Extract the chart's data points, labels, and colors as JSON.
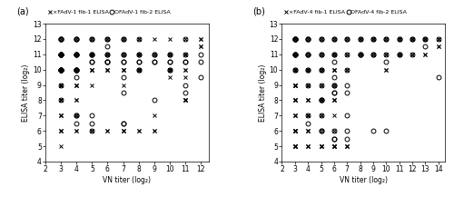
{
  "panel_a": {
    "title": "(a)",
    "legend_label_x": "×FAdV-1 fib-1 ELISA",
    "legend_label_o": "OFAdV-1 fib-2 ELISA",
    "xlabel": "VN titer (log₂)",
    "ylabel": "ELISA titer (log₂)",
    "xlim": [
      2,
      12.5
    ],
    "ylim": [
      4,
      13
    ],
    "xticks": [
      2,
      3,
      4,
      5,
      6,
      7,
      8,
      9,
      10,
      11,
      12
    ],
    "yticks": [
      4,
      5,
      6,
      7,
      8,
      9,
      10,
      11,
      12,
      13
    ],
    "cross_data": {
      "3": [
        5,
        6,
        6,
        6,
        7,
        7,
        7,
        8,
        8,
        8,
        8,
        9,
        9,
        9,
        9,
        9,
        9,
        9,
        10,
        10,
        10,
        10,
        10,
        10,
        10,
        10,
        11,
        11,
        11,
        11,
        11,
        11,
        11,
        12,
        12
      ],
      "4": [
        6,
        6,
        7,
        7,
        8,
        8,
        9,
        9,
        9,
        10,
        10,
        10,
        10,
        11,
        11,
        11,
        11,
        12,
        12
      ],
      "5": [
        6,
        6,
        9,
        10,
        10,
        10,
        11,
        11,
        11,
        11,
        11,
        12,
        12
      ],
      "6": [
        6,
        6,
        10,
        10,
        10,
        11,
        11,
        11,
        12,
        12
      ],
      "7": [
        6,
        6,
        6,
        9,
        10,
        10,
        10,
        11,
        11,
        12,
        12
      ],
      "8": [
        6,
        6,
        10,
        10,
        10,
        10,
        11,
        11,
        11,
        11,
        12,
        12
      ],
      "9": [
        6,
        6,
        7,
        11,
        11,
        12
      ],
      "10": [
        9.5,
        10,
        10,
        10,
        10,
        11,
        11,
        11,
        12
      ],
      "11": [
        8,
        8,
        8,
        8,
        9.5,
        10,
        10,
        11,
        11,
        11,
        12
      ],
      "12": [
        11.5,
        11.5,
        12,
        12
      ]
    },
    "circle_data": {
      "3": [
        8,
        9,
        10,
        10,
        10,
        10,
        10,
        10,
        10,
        10,
        11,
        11,
        11,
        11,
        11,
        11,
        11,
        12,
        12,
        12,
        12
      ],
      "4": [
        6.5,
        7,
        7,
        9.5,
        10,
        10,
        10,
        10,
        10,
        11,
        11,
        11,
        11,
        12,
        12,
        12
      ],
      "5": [
        6,
        6.5,
        7,
        10.5,
        10.5,
        11,
        11,
        11,
        12,
        12
      ],
      "6": [
        10.5,
        10.5,
        10.5,
        11,
        11,
        11.5,
        12,
        12
      ],
      "7": [
        6.5,
        6.5,
        8.5,
        9.5,
        10.5,
        10.5,
        11,
        11,
        12,
        12
      ],
      "8": [
        10,
        10,
        10.5,
        10.5,
        11,
        11,
        12
      ],
      "9": [
        8,
        10.5,
        10.5,
        11,
        11
      ],
      "10": [
        10,
        10,
        10.5,
        10.5,
        11,
        11
      ],
      "11": [
        8.5,
        9,
        10.5,
        10.5,
        11,
        12
      ],
      "12": [
        9.5,
        10.5,
        11
      ]
    }
  },
  "panel_b": {
    "title": "(b)",
    "legend_label_x": "×FAdV-4 fib-1 ELISA",
    "legend_label_o": "OFAdV-4 fib-2 ELISA",
    "xlabel": "VN titer (log₂)",
    "ylabel": "ELISA titer (log₂)",
    "xlim": [
      2,
      14.5
    ],
    "ylim": [
      4,
      13
    ],
    "xticks": [
      2,
      3,
      4,
      5,
      6,
      7,
      8,
      9,
      10,
      11,
      12,
      13,
      14
    ],
    "yticks": [
      4,
      5,
      6,
      7,
      8,
      9,
      10,
      11,
      12,
      13
    ],
    "cross_data": {
      "3": [
        5,
        5,
        5,
        5,
        5,
        6,
        6,
        6,
        6,
        6,
        7,
        7,
        7,
        8,
        8,
        8,
        8,
        9,
        9,
        9,
        9,
        9,
        10,
        10,
        10,
        10,
        10,
        10,
        11,
        11,
        11,
        11,
        11,
        12,
        12,
        12,
        12
      ],
      "4": [
        5,
        5,
        5,
        6,
        6,
        6,
        7,
        7,
        7,
        8,
        8,
        8,
        9,
        9,
        9,
        10,
        10,
        10,
        10,
        11,
        11,
        12,
        12
      ],
      "5": [
        5,
        5,
        5,
        5,
        6,
        7,
        7,
        8,
        8,
        8,
        9,
        9,
        10,
        10,
        10,
        11,
        11,
        12,
        12
      ],
      "6": [
        5,
        5,
        5,
        5,
        5,
        6,
        7,
        8,
        8,
        8,
        9,
        9,
        10,
        10,
        10,
        11,
        11,
        11,
        12,
        12
      ],
      "7": [
        5,
        5,
        5,
        10,
        10,
        11,
        11,
        12,
        12
      ],
      "8": [
        11,
        11,
        11,
        12,
        12,
        12
      ],
      "9": [
        11,
        11,
        12,
        12,
        12
      ],
      "10": [
        10,
        10,
        11,
        11,
        12,
        12
      ],
      "11": [
        11,
        11,
        11,
        12,
        12,
        12
      ],
      "12": [
        11,
        11,
        12,
        12,
        12
      ],
      "13": [
        11,
        11,
        12,
        12,
        12
      ],
      "14": [
        11.5,
        11.5,
        12,
        12
      ]
    },
    "circle_data": {
      "3": [
        10,
        10,
        11,
        11,
        11,
        11,
        12,
        12,
        12,
        12,
        12,
        12
      ],
      "4": [
        6.5,
        7,
        9,
        10,
        10,
        11,
        11,
        11,
        12,
        12,
        12
      ],
      "5": [
        6,
        6,
        7,
        8,
        8,
        8,
        9,
        10,
        10,
        11,
        11,
        12,
        12
      ],
      "6": [
        5.5,
        5.5,
        6,
        8.5,
        8.5,
        9,
        9,
        9.5,
        10.5,
        11,
        11,
        12,
        12
      ],
      "7": [
        5.5,
        6,
        7,
        8.5,
        9,
        10,
        11,
        12,
        12
      ],
      "8": [
        11,
        11,
        11,
        12,
        12
      ],
      "9": [
        6,
        11,
        11,
        12,
        12
      ],
      "10": [
        6,
        10.5,
        11,
        12,
        12
      ],
      "11": [
        11,
        11,
        12,
        12
      ],
      "12": [
        11,
        12,
        12
      ],
      "13": [
        11.5,
        12,
        12
      ],
      "14": [
        9.5,
        12
      ]
    }
  }
}
